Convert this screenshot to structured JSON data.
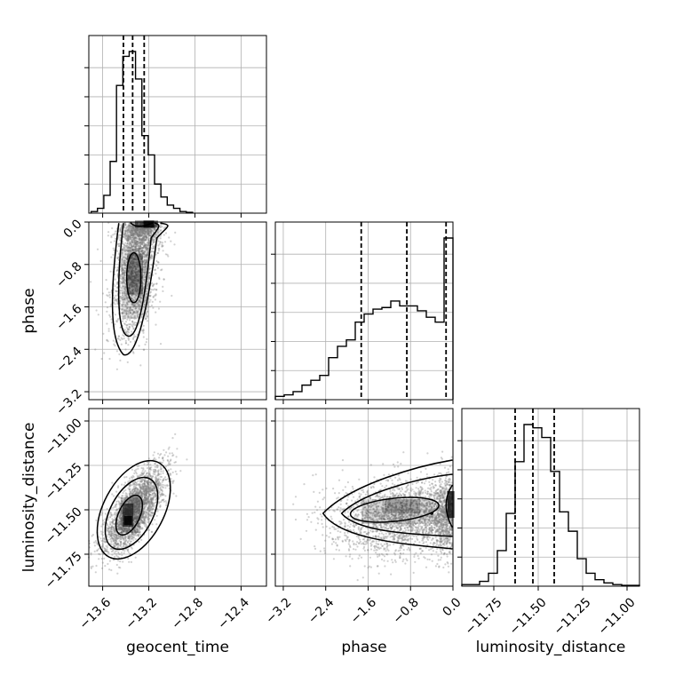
{
  "chart_data": {
    "type": "corner",
    "title": "",
    "parameters": [
      "geocent_time",
      "phase",
      "luminosity_distance"
    ],
    "ranges": {
      "geocent_time": [
        -13.72,
        -12.18
      ],
      "phase": [
        -3.35,
        0.0
      ],
      "luminosity_distance": [
        -11.93,
        -10.93
      ]
    },
    "ticks": {
      "geocent_time": [
        -13.6,
        -13.2,
        -12.8,
        -12.4
      ],
      "phase": [
        -3.2,
        -2.4,
        -1.6,
        -0.8,
        0.0
      ],
      "luminosity_distance": [
        -11.75,
        -11.5,
        -11.25,
        -11.0
      ]
    },
    "tick_labels": {
      "geocent_time": [
        "−13.6",
        "−13.2",
        "−12.8",
        "−12.4"
      ],
      "phase": [
        "−3.2",
        "−2.4",
        "−1.6",
        "−0.8",
        "0.0"
      ],
      "luminosity_distance": [
        "−11.75",
        "−11.50",
        "−11.25",
        "−11.00"
      ]
    },
    "quantiles": {
      "geocent_time": [
        -13.42,
        -13.34,
        -13.24
      ],
      "phase": [
        -1.73,
        -0.87,
        -0.13
      ],
      "luminosity_distance": [
        -11.63,
        -11.53,
        -11.41
      ]
    },
    "histograms": {
      "geocent_time": {
        "start": -13.7,
        "bin_width": 0.055,
        "counts": [
          0.01,
          0.03,
          0.11,
          0.32,
          0.79,
          0.97,
          1.0,
          0.83,
          0.48,
          0.36,
          0.18,
          0.1,
          0.05,
          0.03,
          0.01,
          0.005
        ]
      },
      "phase": {
        "start": -3.35,
        "bin_width": 0.1675,
        "counts": [
          0.02,
          0.03,
          0.05,
          0.09,
          0.12,
          0.15,
          0.26,
          0.33,
          0.37,
          0.48,
          0.53,
          0.56,
          0.57,
          0.61,
          0.58,
          0.58,
          0.55,
          0.51,
          0.48,
          1.0
        ]
      },
      "luminosity_distance": {
        "start": -11.93,
        "bin_width": 0.05,
        "counts": [
          0.01,
          0.01,
          0.03,
          0.08,
          0.22,
          0.45,
          0.77,
          1.0,
          0.98,
          0.92,
          0.71,
          0.46,
          0.34,
          0.17,
          0.08,
          0.04,
          0.02,
          0.01,
          0.005,
          0.005
        ]
      }
    },
    "pairs": [
      {
        "x": "geocent_time",
        "y": "phase",
        "description": "tight in geocent_time near -13.3, broad in phase, peak near phase 0.0 and -1.0"
      },
      {
        "x": "geocent_time",
        "y": "luminosity_distance",
        "description": "positive correlation, peak near (-13.38, -11.53)"
      },
      {
        "x": "phase",
        "y": "luminosity_distance",
        "description": "broad in phase, peak at phase 0.0, luminosity_distance near -11.5"
      }
    ],
    "xlabel": [
      "geocent_time",
      "phase",
      "luminosity_distance"
    ],
    "ylabel": [
      "",
      "phase",
      "luminosity_distance"
    ],
    "grid": true,
    "legend": "none"
  }
}
